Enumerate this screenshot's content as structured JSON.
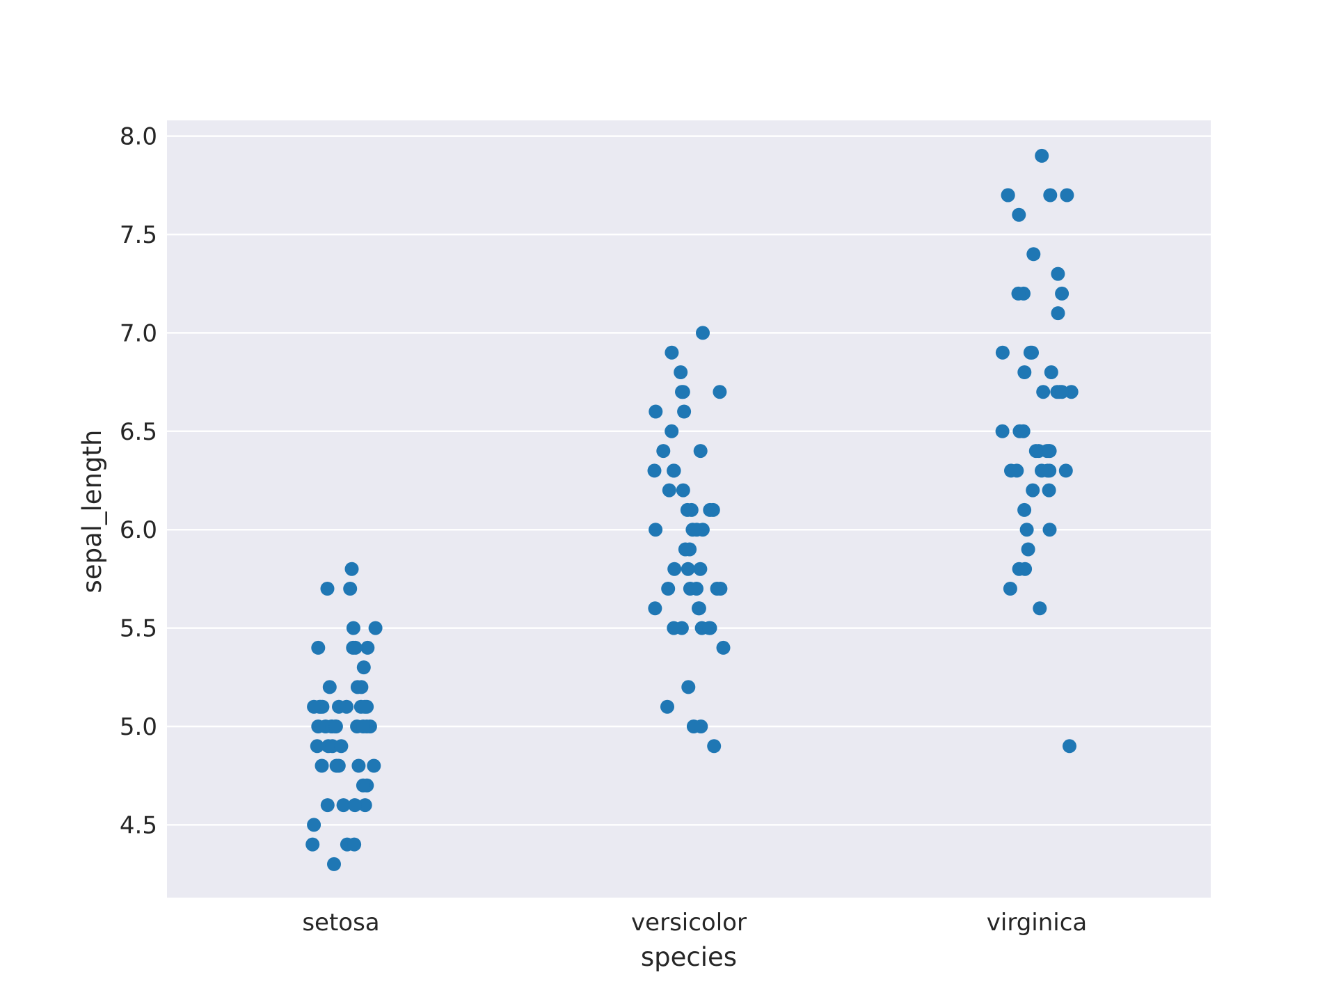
{
  "chart_data": {
    "type": "scatter",
    "subtype": "strip/swarm",
    "title": "",
    "xlabel": "species",
    "ylabel": "sepal_length",
    "categories": [
      "setosa",
      "versicolor",
      "virginica"
    ],
    "ylim": [
      4.13,
      8.08
    ],
    "yticks": [
      "4.5",
      "5.0",
      "5.5",
      "6.0",
      "6.5",
      "7.0",
      "7.5",
      "8.0"
    ],
    "grid": true,
    "point_color": "#1f77b4",
    "background_color": "#eaeaf2",
    "series": [
      {
        "values": [
          5.8,
          5.7,
          5.7,
          5.5,
          5.5,
          5.4,
          5.4,
          5.4,
          5.4,
          5.3,
          5.2,
          5.2,
          5.2,
          5.1,
          5.1,
          5.1,
          5.1,
          5.1,
          5.1,
          5.1,
          5.1,
          5.1,
          5.0,
          5.0,
          5.0,
          5.0,
          5.0,
          5.0,
          5.0,
          5.0,
          5.0,
          5.0,
          4.9,
          4.9,
          4.9,
          4.9,
          4.8,
          4.8,
          4.8,
          4.8,
          4.8,
          4.7,
          4.7,
          4.6,
          4.6,
          4.6,
          4.6,
          4.5,
          4.4,
          4.4,
          4.4,
          4.3
        ]
      },
      {
        "values": [
          7.0,
          6.9,
          6.8,
          6.7,
          6.7,
          6.7,
          6.6,
          6.6,
          6.5,
          6.4,
          6.4,
          6.3,
          6.3,
          6.3,
          6.2,
          6.2,
          6.1,
          6.1,
          6.1,
          6.1,
          6.0,
          6.0,
          6.0,
          6.0,
          5.9,
          5.9,
          5.8,
          5.8,
          5.8,
          5.7,
          5.7,
          5.7,
          5.7,
          5.7,
          5.6,
          5.6,
          5.6,
          5.5,
          5.5,
          5.5,
          5.5,
          5.5,
          5.4,
          5.2,
          5.1,
          5.0,
          5.0,
          4.9
        ]
      },
      {
        "values": [
          7.9,
          7.7,
          7.7,
          7.7,
          7.7,
          7.6,
          7.4,
          7.3,
          7.2,
          7.2,
          7.2,
          7.1,
          6.9,
          6.9,
          6.9,
          6.8,
          6.8,
          6.7,
          6.7,
          6.7,
          6.7,
          6.7,
          6.5,
          6.5,
          6.5,
          6.4,
          6.4,
          6.4,
          6.4,
          6.4,
          6.3,
          6.3,
          6.3,
          6.3,
          6.3,
          6.3,
          6.2,
          6.2,
          6.1,
          6.0,
          6.0,
          5.9,
          5.8,
          5.8,
          5.7,
          5.6,
          4.9
        ]
      }
    ]
  }
}
